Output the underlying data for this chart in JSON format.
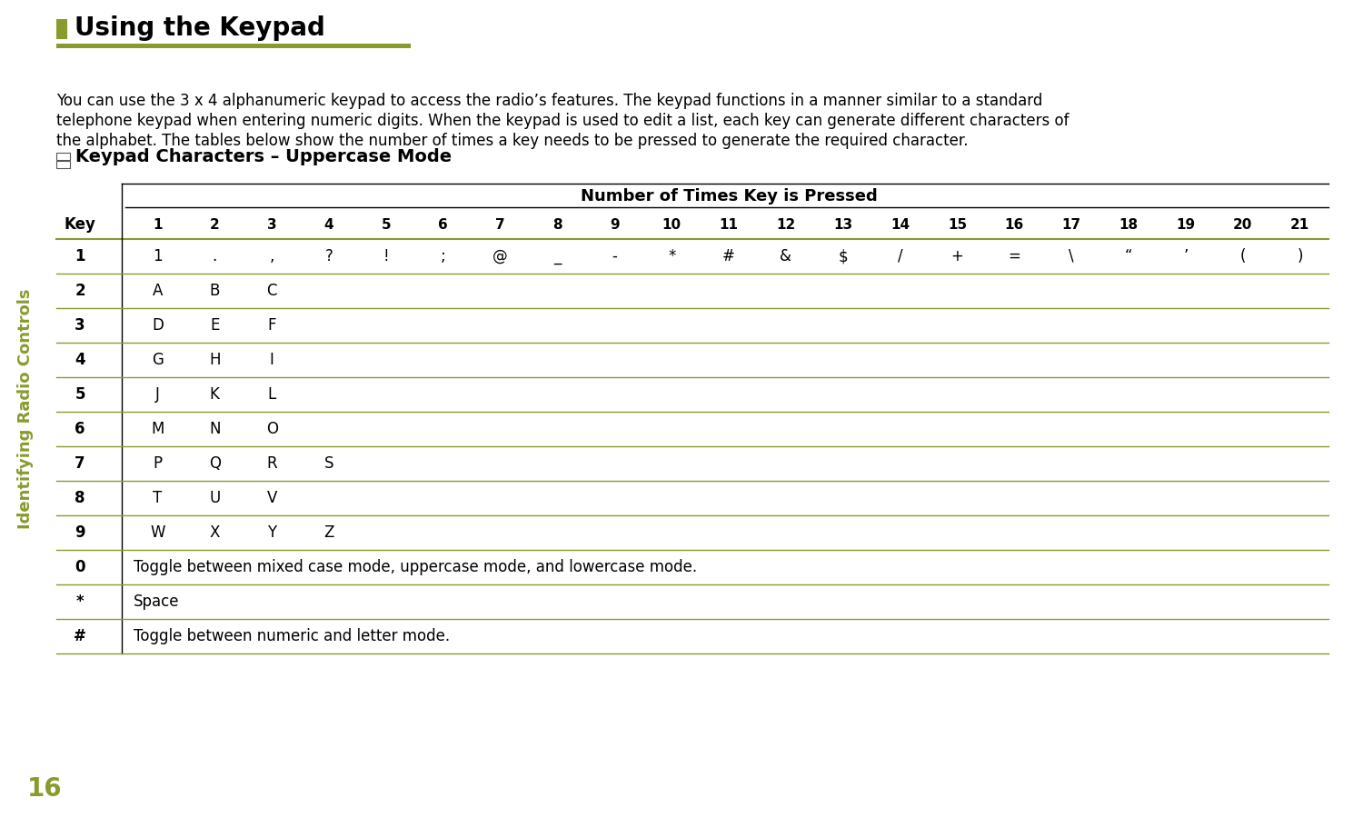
{
  "title": "Using the Keypad",
  "title_color": "#000000",
  "title_bar_color": "#8a9a2e",
  "sidebar_text": "Identifying Radio Controls",
  "sidebar_color": "#8a9a2e",
  "page_number": "16",
  "page_number_color": "#8a9a2e",
  "body_lines": [
    "You can use the 3 x 4 alphanumeric keypad to access the radio’s features. The keypad functions in a manner similar to a standard",
    "telephone keypad when entering numeric digits. When the keypad is used to edit a list, each key can generate different characters of",
    "the alphabet. The tables below show the number of times a key needs to be pressed to generate the required character."
  ],
  "section_title": "Keypad Characters – Uppercase Mode",
  "table_header": "Number of Times Key is Pressed",
  "columns": [
    "Key",
    "1",
    "2",
    "3",
    "4",
    "5",
    "6",
    "7",
    "8",
    "9",
    "10",
    "11",
    "12",
    "13",
    "14",
    "15",
    "16",
    "17",
    "18",
    "19",
    "20",
    "21"
  ],
  "rows": [
    [
      "1",
      "1",
      ".",
      ",",
      "?",
      "!",
      ";",
      "@",
      "_",
      "-",
      "*",
      "#",
      "&",
      "$",
      "/",
      "+",
      "=",
      "\\",
      "“",
      "’",
      "(",
      ")"
    ],
    [
      "2",
      "A",
      "B",
      "C",
      "",
      "",
      "",
      "",
      "",
      "",
      "",
      "",
      "",
      "",
      "",
      "",
      "",
      "",
      "",
      "",
      "",
      ""
    ],
    [
      "3",
      "D",
      "E",
      "F",
      "",
      "",
      "",
      "",
      "",
      "",
      "",
      "",
      "",
      "",
      "",
      "",
      "",
      "",
      "",
      "",
      "",
      ""
    ],
    [
      "4",
      "G",
      "H",
      "I",
      "",
      "",
      "",
      "",
      "",
      "",
      "",
      "",
      "",
      "",
      "",
      "",
      "",
      "",
      "",
      "",
      "",
      ""
    ],
    [
      "5",
      "J",
      "K",
      "L",
      "",
      "",
      "",
      "",
      "",
      "",
      "",
      "",
      "",
      "",
      "",
      "",
      "",
      "",
      "",
      "",
      "",
      ""
    ],
    [
      "6",
      "M",
      "N",
      "O",
      "",
      "",
      "",
      "",
      "",
      "",
      "",
      "",
      "",
      "",
      "",
      "",
      "",
      "",
      "",
      "",
      "",
      ""
    ],
    [
      "7",
      "P",
      "Q",
      "R",
      "S",
      "",
      "",
      "",
      "",
      "",
      "",
      "",
      "",
      "",
      "",
      "",
      "",
      "",
      "",
      "",
      "",
      ""
    ],
    [
      "8",
      "T",
      "U",
      "V",
      "",
      "",
      "",
      "",
      "",
      "",
      "",
      "",
      "",
      "",
      "",
      "",
      "",
      "",
      "",
      "",
      "",
      ""
    ],
    [
      "9",
      "W",
      "X",
      "Y",
      "Z",
      "",
      "",
      "",
      "",
      "",
      "",
      "",
      "",
      "",
      "",
      "",
      "",
      "",
      "",
      "",
      "",
      ""
    ],
    [
      "0",
      "Toggle between mixed case mode, uppercase mode, and lowercase mode.",
      "",
      "",
      "",
      "",
      "",
      "",
      "",
      "",
      "",
      "",
      "",
      "",
      "",
      "",
      "",
      "",
      "",
      "",
      "",
      ""
    ],
    [
      "*",
      "Space",
      "",
      "",
      "",
      "",
      "",
      "",
      "",
      "",
      "",
      "",
      "",
      "",
      "",
      "",
      "",
      "",
      "",
      "",
      "",
      ""
    ],
    [
      "#",
      "Toggle between numeric and letter mode.",
      "",
      "",
      "",
      "",
      "",
      "",
      "",
      "",
      "",
      "",
      "",
      "",
      "",
      "",
      "",
      "",
      "",
      "",
      "",
      ""
    ]
  ],
  "line_color": "#8a9a2e",
  "header_line_color": "#000000",
  "bg_color": "#ffffff"
}
